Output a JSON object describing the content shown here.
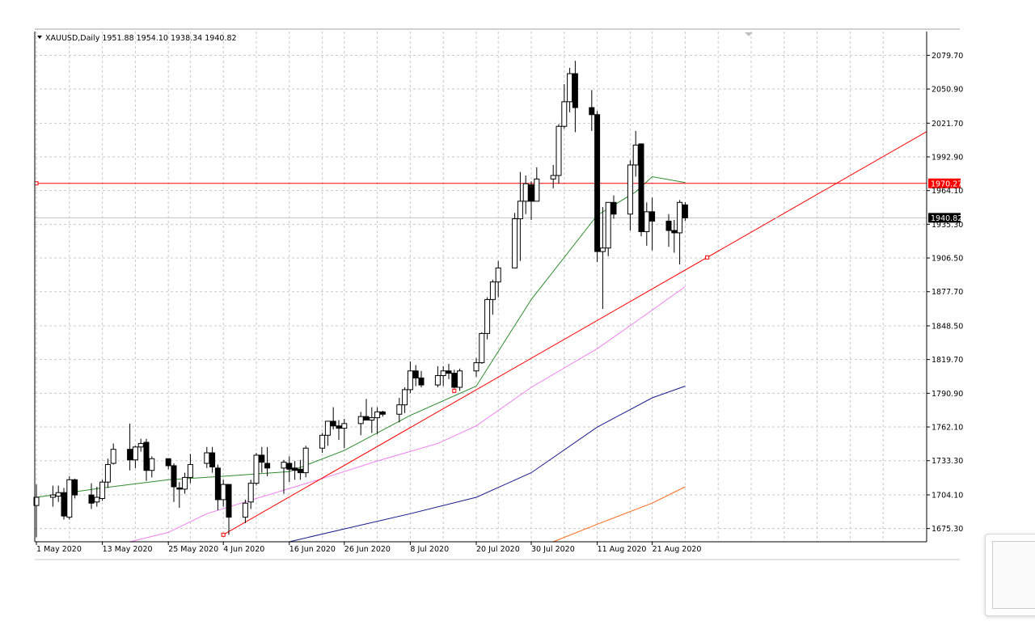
{
  "header": {
    "text": "XAUUSD,Daily  1951.88 1954.10 1938.34 1940.82"
  },
  "chart_data": {
    "type": "candlestick",
    "symbol": "XAUUSD",
    "timeframe": "Daily",
    "ohlc_header": {
      "open": 1951.88,
      "high": 1954.1,
      "low": 1938.34,
      "close": 1940.82
    },
    "grid": true,
    "ylim": [
      1664,
      2100
    ],
    "y_ticks": [
      "2079.70",
      "2050.90",
      "2021.70",
      "1992.90",
      "1964.10",
      "1935.30",
      "1906.50",
      "1877.70",
      "1848.50",
      "1819.70",
      "1790.90",
      "1762.10",
      "1733.30",
      "1704.10",
      "1675.30"
    ],
    "x_ticks": [
      {
        "label": "1 May 2020",
        "date": "2020-05-01"
      },
      {
        "label": "13 May 2020",
        "date": "2020-05-13"
      },
      {
        "label": "25 May 2020",
        "date": "2020-05-25"
      },
      {
        "label": "4 Jun 2020",
        "date": "2020-06-04"
      },
      {
        "label": "16 Jun 2020",
        "date": "2020-06-16"
      },
      {
        "label": "26 Jun 2020",
        "date": "2020-06-26"
      },
      {
        "label": "8 Jul 2020",
        "date": "2020-07-08"
      },
      {
        "label": "20 Jul 2020",
        "date": "2020-07-20"
      },
      {
        "label": "30 Jul 2020",
        "date": "2020-07-30"
      },
      {
        "label": "11 Aug 2020",
        "date": "2020-08-11"
      },
      {
        "label": "21 Aug 2020",
        "date": "2020-08-21"
      }
    ],
    "candles": [
      {
        "date": "2020-05-01",
        "o": 1695,
        "h": 1713,
        "l": 1668,
        "c": 1702
      },
      {
        "date": "2020-05-04",
        "o": 1702,
        "h": 1712,
        "l": 1694,
        "c": 1704
      },
      {
        "date": "2020-05-05",
        "o": 1703,
        "h": 1712,
        "l": 1698,
        "c": 1706
      },
      {
        "date": "2020-05-06",
        "o": 1706,
        "h": 1710,
        "l": 1683,
        "c": 1686
      },
      {
        "date": "2020-05-07",
        "o": 1685,
        "h": 1720,
        "l": 1683,
        "c": 1717
      },
      {
        "date": "2020-05-08",
        "o": 1717,
        "h": 1718,
        "l": 1701,
        "c": 1704
      },
      {
        "date": "2020-05-11",
        "o": 1704,
        "h": 1714,
        "l": 1692,
        "c": 1697
      },
      {
        "date": "2020-05-12",
        "o": 1698,
        "h": 1711,
        "l": 1694,
        "c": 1702
      },
      {
        "date": "2020-05-13",
        "o": 1701,
        "h": 1717,
        "l": 1699,
        "c": 1715
      },
      {
        "date": "2020-05-14",
        "o": 1715,
        "h": 1735,
        "l": 1710,
        "c": 1730
      },
      {
        "date": "2020-05-15",
        "o": 1731,
        "h": 1748,
        "l": 1730,
        "c": 1743
      },
      {
        "date": "2020-05-18",
        "o": 1743,
        "h": 1765,
        "l": 1725,
        "c": 1734
      },
      {
        "date": "2020-05-19",
        "o": 1734,
        "h": 1746,
        "l": 1727,
        "c": 1745
      },
      {
        "date": "2020-05-20",
        "o": 1745,
        "h": 1752,
        "l": 1741,
        "c": 1748
      },
      {
        "date": "2020-05-21",
        "o": 1749,
        "h": 1752,
        "l": 1716,
        "c": 1725
      },
      {
        "date": "2020-05-22",
        "o": 1725,
        "h": 1737,
        "l": 1719,
        "c": 1735
      },
      {
        "date": "2020-05-25",
        "o": 1735,
        "h": 1735,
        "l": 1726,
        "c": 1729
      },
      {
        "date": "2020-05-26",
        "o": 1729,
        "h": 1731,
        "l": 1698,
        "c": 1711
      },
      {
        "date": "2020-05-27",
        "o": 1710,
        "h": 1715,
        "l": 1693,
        "c": 1709
      },
      {
        "date": "2020-05-28",
        "o": 1709,
        "h": 1723,
        "l": 1705,
        "c": 1719
      },
      {
        "date": "2020-05-29",
        "o": 1719,
        "h": 1739,
        "l": 1714,
        "c": 1730
      },
      {
        "date": "2020-06-01",
        "o": 1731,
        "h": 1745,
        "l": 1727,
        "c": 1740
      },
      {
        "date": "2020-06-02",
        "o": 1740,
        "h": 1745,
        "l": 1723,
        "c": 1728
      },
      {
        "date": "2020-06-03",
        "o": 1727,
        "h": 1730,
        "l": 1691,
        "c": 1700
      },
      {
        "date": "2020-06-04",
        "o": 1700,
        "h": 1717,
        "l": 1694,
        "c": 1713
      },
      {
        "date": "2020-06-05",
        "o": 1713,
        "h": 1713,
        "l": 1670,
        "c": 1685
      },
      {
        "date": "2020-06-08",
        "o": 1685,
        "h": 1700,
        "l": 1680,
        "c": 1697
      },
      {
        "date": "2020-06-09",
        "o": 1698,
        "h": 1717,
        "l": 1692,
        "c": 1714
      },
      {
        "date": "2020-06-10",
        "o": 1714,
        "h": 1740,
        "l": 1712,
        "c": 1738
      },
      {
        "date": "2020-06-11",
        "o": 1738,
        "h": 1745,
        "l": 1723,
        "c": 1732
      },
      {
        "date": "2020-06-12",
        "o": 1731,
        "h": 1745,
        "l": 1720,
        "c": 1727
      },
      {
        "date": "2020-06-15",
        "o": 1727,
        "h": 1734,
        "l": 1705,
        "c": 1732
      },
      {
        "date": "2020-06-16",
        "o": 1731,
        "h": 1737,
        "l": 1715,
        "c": 1726
      },
      {
        "date": "2020-06-17",
        "o": 1727,
        "h": 1733,
        "l": 1717,
        "c": 1725
      },
      {
        "date": "2020-06-18",
        "o": 1726,
        "h": 1734,
        "l": 1717,
        "c": 1723
      },
      {
        "date": "2020-06-19",
        "o": 1723,
        "h": 1746,
        "l": 1719,
        "c": 1744
      },
      {
        "date": "2020-06-22",
        "o": 1744,
        "h": 1757,
        "l": 1740,
        "c": 1755
      },
      {
        "date": "2020-06-23",
        "o": 1755,
        "h": 1767,
        "l": 1746,
        "c": 1767
      },
      {
        "date": "2020-06-24",
        "o": 1767,
        "h": 1779,
        "l": 1760,
        "c": 1763
      },
      {
        "date": "2020-06-25",
        "o": 1763,
        "h": 1768,
        "l": 1751,
        "c": 1761
      },
      {
        "date": "2020-06-26",
        "o": 1761,
        "h": 1769,
        "l": 1744,
        "c": 1765
      },
      {
        "date": "2020-06-29",
        "o": 1765,
        "h": 1775,
        "l": 1755,
        "c": 1771
      },
      {
        "date": "2020-06-30",
        "o": 1771,
        "h": 1786,
        "l": 1769,
        "c": 1768
      },
      {
        "date": "2020-07-01",
        "o": 1768,
        "h": 1779,
        "l": 1757,
        "c": 1770
      },
      {
        "date": "2020-07-02",
        "o": 1770,
        "h": 1779,
        "l": 1756,
        "c": 1775
      },
      {
        "date": "2020-07-03",
        "o": 1775,
        "h": 1776,
        "l": 1771,
        "c": 1773
      },
      {
        "date": "2020-07-06",
        "o": 1773,
        "h": 1787,
        "l": 1766,
        "c": 1781
      },
      {
        "date": "2020-07-07",
        "o": 1781,
        "h": 1796,
        "l": 1774,
        "c": 1794
      },
      {
        "date": "2020-07-08",
        "o": 1794,
        "h": 1818,
        "l": 1791,
        "c": 1810
      },
      {
        "date": "2020-07-09",
        "o": 1810,
        "h": 1815,
        "l": 1797,
        "c": 1804
      },
      {
        "date": "2020-07-10",
        "o": 1804,
        "h": 1810,
        "l": 1796,
        "c": 1798
      },
      {
        "date": "2020-07-13",
        "o": 1798,
        "h": 1814,
        "l": 1796,
        "c": 1806
      },
      {
        "date": "2020-07-14",
        "o": 1806,
        "h": 1814,
        "l": 1797,
        "c": 1810
      },
      {
        "date": "2020-07-15",
        "o": 1810,
        "h": 1816,
        "l": 1803,
        "c": 1808
      },
      {
        "date": "2020-07-16",
        "o": 1808,
        "h": 1811,
        "l": 1795,
        "c": 1796
      },
      {
        "date": "2020-07-17",
        "o": 1796,
        "h": 1812,
        "l": 1793,
        "c": 1810
      },
      {
        "date": "2020-07-20",
        "o": 1810,
        "h": 1821,
        "l": 1805,
        "c": 1817
      },
      {
        "date": "2020-07-21",
        "o": 1817,
        "h": 1843,
        "l": 1816,
        "c": 1842
      },
      {
        "date": "2020-07-22",
        "o": 1842,
        "h": 1873,
        "l": 1837,
        "c": 1871
      },
      {
        "date": "2020-07-23",
        "o": 1871,
        "h": 1888,
        "l": 1858,
        "c": 1886
      },
      {
        "date": "2020-07-24",
        "o": 1886,
        "h": 1904,
        "l": 1873,
        "c": 1898
      },
      {
        "date": "2020-07-27",
        "o": 1898,
        "h": 1945,
        "l": 1898,
        "c": 1940
      },
      {
        "date": "2020-07-28",
        "o": 1940,
        "h": 1980,
        "l": 1904,
        "c": 1955
      },
      {
        "date": "2020-07-29",
        "o": 1955,
        "h": 1977,
        "l": 1944,
        "c": 1970
      },
      {
        "date": "2020-07-30",
        "o": 1969,
        "h": 1972,
        "l": 1939,
        "c": 1955
      },
      {
        "date": "2020-07-31",
        "o": 1955,
        "h": 1984,
        "l": 1955,
        "c": 1974
      },
      {
        "date": "2020-08-03",
        "o": 1974,
        "h": 1986,
        "l": 1966,
        "c": 1977
      },
      {
        "date": "2020-08-04",
        "o": 1977,
        "h": 2021,
        "l": 1970,
        "c": 2019
      },
      {
        "date": "2020-08-05",
        "o": 2019,
        "h": 2055,
        "l": 2017,
        "c": 2040
      },
      {
        "date": "2020-08-06",
        "o": 2040,
        "h": 2069,
        "l": 2031,
        "c": 2064
      },
      {
        "date": "2020-08-07",
        "o": 2064,
        "h": 2075,
        "l": 2014,
        "c": 2035
      },
      {
        "date": "2020-08-10",
        "o": 2035,
        "h": 2050,
        "l": 2015,
        "c": 2029
      },
      {
        "date": "2020-08-11",
        "o": 2029,
        "h": 2032,
        "l": 1903,
        "c": 1912
      },
      {
        "date": "2020-08-12",
        "o": 1912,
        "h": 1950,
        "l": 1863,
        "c": 1915
      },
      {
        "date": "2020-08-13",
        "o": 1915,
        "h": 1954,
        "l": 1908,
        "c": 1954
      },
      {
        "date": "2020-08-14",
        "o": 1954,
        "h": 1960,
        "l": 1940,
        "c": 1944
      },
      {
        "date": "2020-08-17",
        "o": 1944,
        "h": 1990,
        "l": 1930,
        "c": 1986
      },
      {
        "date": "2020-08-18",
        "o": 1986,
        "h": 2015,
        "l": 1976,
        "c": 2003
      },
      {
        "date": "2020-08-19",
        "o": 2004,
        "h": 2004,
        "l": 1925,
        "c": 1929
      },
      {
        "date": "2020-08-20",
        "o": 1929,
        "h": 1954,
        "l": 1917,
        "c": 1946
      },
      {
        "date": "2020-08-21",
        "o": 1946,
        "h": 1958,
        "l": 1913,
        "c": 1938
      },
      {
        "date": "2020-08-24",
        "o": 1938,
        "h": 1944,
        "l": 1916,
        "c": 1930
      },
      {
        "date": "2020-08-25",
        "o": 1930,
        "h": 1939,
        "l": 1911,
        "c": 1928
      },
      {
        "date": "2020-08-26",
        "o": 1928,
        "h": 1956,
        "l": 1901,
        "c": 1954
      },
      {
        "date": "2020-08-27",
        "o": 1951.88,
        "h": 1954.1,
        "l": 1938.34,
        "c": 1940.82
      }
    ],
    "moving_averages": [
      {
        "color": "#2e8b2e",
        "points": [
          [
            "2020-05-01",
            1702
          ],
          [
            "2020-05-13",
            1710
          ],
          [
            "2020-05-25",
            1717
          ],
          [
            "2020-06-04",
            1720
          ],
          [
            "2020-06-16",
            1724
          ],
          [
            "2020-06-26",
            1742
          ],
          [
            "2020-07-08",
            1772
          ],
          [
            "2020-07-20",
            1797
          ],
          [
            "2020-07-30",
            1871
          ],
          [
            "2020-08-11",
            1943
          ],
          [
            "2020-08-18",
            1963
          ],
          [
            "2020-08-21",
            1976
          ],
          [
            "2020-08-27",
            1971
          ]
        ]
      },
      {
        "color": "#ee82ee",
        "points": [
          [
            "2020-05-18",
            1664
          ],
          [
            "2020-05-25",
            1672
          ],
          [
            "2020-06-01",
            1688
          ],
          [
            "2020-06-10",
            1701
          ],
          [
            "2020-06-22",
            1718
          ],
          [
            "2020-07-02",
            1733
          ],
          [
            "2020-07-13",
            1748
          ],
          [
            "2020-07-20",
            1763
          ],
          [
            "2020-07-30",
            1796
          ],
          [
            "2020-08-11",
            1829
          ],
          [
            "2020-08-18",
            1852
          ],
          [
            "2020-08-27",
            1882
          ]
        ]
      },
      {
        "color": "#1a1a8c",
        "points": [
          [
            "2020-06-16",
            1664
          ],
          [
            "2020-06-26",
            1675
          ],
          [
            "2020-07-08",
            1688
          ],
          [
            "2020-07-20",
            1702
          ],
          [
            "2020-07-30",
            1723
          ],
          [
            "2020-08-11",
            1762
          ],
          [
            "2020-08-21",
            1787
          ],
          [
            "2020-08-27",
            1797
          ]
        ]
      },
      {
        "color": "#ff6a1a",
        "points": [
          [
            "2020-08-03",
            1664
          ],
          [
            "2020-08-11",
            1679
          ],
          [
            "2020-08-21",
            1697
          ],
          [
            "2020-08-27",
            1711
          ]
        ]
      }
    ],
    "horizontal_line": {
      "value": 1970.27,
      "label": "1970.27",
      "color": "#ff0000"
    },
    "trendline": {
      "color": "#ff0000",
      "points": [
        [
          "2020-06-04",
          1670
        ],
        [
          "2020-07-16",
          1793
        ],
        [
          "2020-08-31",
          1907
        ]
      ]
    },
    "last_price": {
      "value": 1940.82,
      "label": "1940.82"
    }
  }
}
